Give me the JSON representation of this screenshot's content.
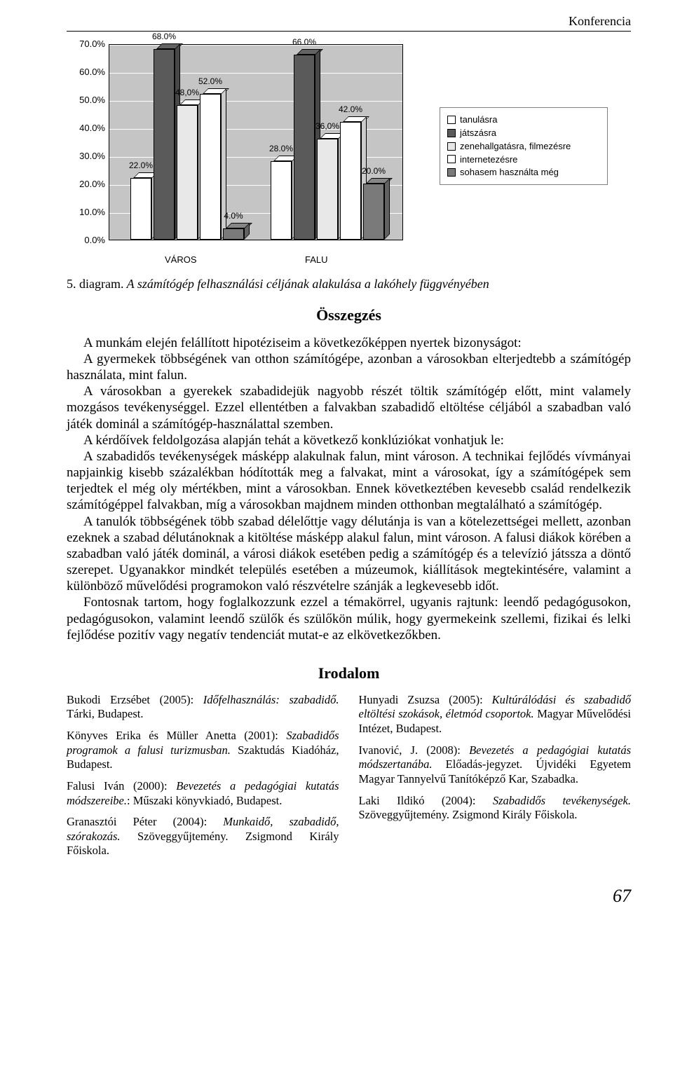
{
  "header": {
    "section": "Konferencia"
  },
  "chart": {
    "type": "bar-3d",
    "ylim": [
      0,
      70
    ],
    "ytick_step": 10,
    "ytick_labels": [
      "0.0%",
      "10.0%",
      "20.0%",
      "30.0%",
      "40.0%",
      "50.0%",
      "60.0%",
      "70.0%"
    ],
    "plot_bg": "#c5c5c5",
    "grid_color": "#ffffff",
    "categories": [
      "VÁROS",
      "FALU"
    ],
    "series": [
      {
        "name": "tanulásra",
        "color": "#ffffff",
        "values": [
          22.0,
          28.0
        ]
      },
      {
        "name": "játszásra",
        "color": "#5a5a5a",
        "values": [
          68.0,
          66.0
        ]
      },
      {
        "name": "zenehallgatásra, filmezésre",
        "color": "#e8e8e8",
        "values": [
          48.0,
          36.0
        ]
      },
      {
        "name": "internetezésre",
        "color": "#ffffff",
        "values": [
          52.0,
          42.0
        ]
      },
      {
        "name": "sohasem használta még",
        "color": "#7a7a7a",
        "values": [
          4.0,
          20.0
        ]
      }
    ],
    "bar_labels": [
      [
        "22.0%",
        "68.0%",
        "48,0%",
        "52.0%",
        "4.0%"
      ],
      [
        "28.0%",
        "66.0%",
        "36,0%",
        "42.0%",
        "20.0%"
      ]
    ]
  },
  "caption": {
    "num": "5. diagram.",
    "text": "A számítógép felhasználási céljának alakulása a lakóhely függvényében"
  },
  "section_summary_title": "Összegzés",
  "paragraphs": [
    "A munkám elején felállított hipotéziseim a következőképpen nyertek bizonyságot:",
    "A gyermekek többségének van otthon számítógépe, azonban a városokban elterjedtebb a számítógép használata, mint falun.",
    "A városokban a gyerekek szabadidejük nagyobb részét töltik számítógép előtt, mint valamely mozgásos tevékenységgel. Ezzel ellentétben a falvakban szabadidő eltöltése céljából a szabadban való játék dominál a számítógép-használattal szemben.",
    "A kérdőívek feldolgozása alapján tehát a következő konklúziókat vonhatjuk le:",
    "A szabadidős tevékenységek másképp alakulnak falun, mint városon. A technikai fejlődés vívmányai napjainkig kisebb százalékban hódították meg a falvakat, mint a városokat, így a számítógépek sem terjedtek el még oly mértékben, mint a városokban. Ennek következtében kevesebb család rendelkezik számítógéppel falvakban, míg a városokban majdnem minden otthonban megtalálható a számítógép.",
    "A tanulók többségének több szabad délelőttje vagy délutánja is van a kötelezettségei mellett, azonban ezeknek a szabad délutánoknak a kitöltése másképp alakul falun, mint városon. A falusi diákok körében a szabadban való játék dominál, a városi diákok esetében pedig a számítógép és a televízió játssza a döntő szerepet. Ugyanakkor mindkét település esetében a múzeumok, kiállítások megtekintésére, valamint a különböző művelődési programokon való részvételre szánják a legkevesebb időt.",
    "Fontosnak tartom, hogy foglalkozzunk ezzel a témakörrel, ugyanis rajtunk: leendő pedagógusokon, pedagógusokon, valamint leendő szülők és szülőkön múlik, hogy gyermekeink szellemi, fizikai és lelki fejlődése pozitív vagy negatív tendenciát mutat-e az elkövetkezőkben."
  ],
  "biblio_title": "Irodalom",
  "biblio_left": [
    {
      "html": "Bukodi Erzsébet (2005): <em>Időfelhasználás: szabadidő.</em> Tárki, Budapest."
    },
    {
      "html": "Könyves Erika és Müller Anetta (2001): <em>Szabadidős programok a falusi turizmusban.</em> Szaktudás Kiadóház, Budapest."
    },
    {
      "html": "Falusi Iván (2000): <em>Bevezetés a pedagógiai kutatás módszereibe.</em>: Műszaki könyvkiadó, Budapest."
    },
    {
      "html": "Granasztói Péter (2004): <em>Munkaidő, szabadidő, szórakozás.</em> Szöveggyűjtemény. Zsigmond Király Főiskola."
    }
  ],
  "biblio_right": [
    {
      "html": "Hunyadi Zsuzsa (2005): <em>Kultúrálódási és szabadidő eltöltési szokások, életmód csoportok.</em> Magyar Művelődési Intézet, Budapest."
    },
    {
      "html": "Ivanović, J. (2008): <em>Bevezetés a pedagógiai kutatás módszertanába.</em> Előadás-jegyzet. Újvidéki Egyetem Magyar Tannyelvű Tanítóképző Kar, Szabadka."
    },
    {
      "html": "Laki Ildikó (2004): <em>Szabadidős tevékenységek.</em> Szöveggyűjtemény. Zsigmond Király Főiskola."
    }
  ],
  "page_number": "67"
}
